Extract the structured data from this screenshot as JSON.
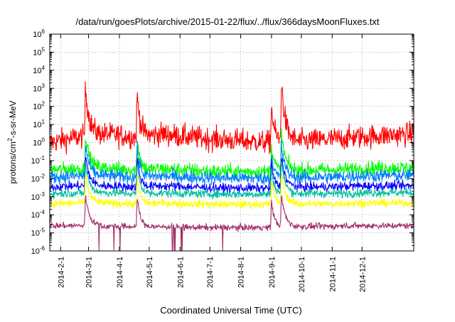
{
  "chart_data": {
    "type": "line",
    "title": "/data/run/goesPlots/archive/2015-01-22/flux/../flux/366daysMoonFluxes.txt",
    "xlabel": "Coordinated Universal Time (UTC)",
    "ylabel": {
      "prefix": "protons/cm",
      "sup": "2",
      "suffix": "-s-sr-MeV"
    },
    "yscale": "log",
    "ylim": [
      1e-06,
      1000000
    ],
    "yticks": [
      {
        "value": 1e-06,
        "base": "10",
        "exp": "-6"
      },
      {
        "value": 1e-05,
        "base": "10",
        "exp": "-5"
      },
      {
        "value": 0.0001,
        "base": "10",
        "exp": "-4"
      },
      {
        "value": 0.001,
        "base": "10",
        "exp": "-3"
      },
      {
        "value": 0.01,
        "base": "10",
        "exp": "-2"
      },
      {
        "value": 0.1,
        "base": "10",
        "exp": "-1"
      },
      {
        "value": 1,
        "base": "10",
        "exp": "0"
      },
      {
        "value": 10,
        "base": "10",
        "exp": "1"
      },
      {
        "value": 100,
        "base": "10",
        "exp": "2"
      },
      {
        "value": 1000,
        "base": "10",
        "exp": "3"
      },
      {
        "value": 10000,
        "base": "10",
        "exp": "4"
      },
      {
        "value": 100000,
        "base": "10",
        "exp": "5"
      },
      {
        "value": 1000000,
        "base": "10",
        "exp": "6"
      }
    ],
    "xlim": [
      "2014-01-21",
      "2015-01-22"
    ],
    "xticks": [
      "2014-2-1",
      "2014-3-1",
      "2014-4-1",
      "2014-5-1",
      "2014-6-1",
      "2014-7-1",
      "2014-8-1",
      "2014-9-1",
      "2014-10-1",
      "2014-11-1",
      "2014-12-1"
    ],
    "grid": true,
    "legend": "none",
    "events": [
      {
        "date": "2014-02-26",
        "peak": 1000,
        "width_days": 4
      },
      {
        "date": "2014-04-19",
        "peak": 500,
        "width_days": 3
      },
      {
        "date": "2014-09-01",
        "peak": 100,
        "width_days": 3
      },
      {
        "date": "2014-09-11",
        "peak": 2000,
        "width_days": 4
      }
    ],
    "series": [
      {
        "color": "#ff0000",
        "values": [
          1.0,
          2.0,
          3.0,
          2.0,
          3.0,
          2.0,
          1.5,
          1.2,
          1.0,
          1.2,
          1.5,
          2.0,
          2.5,
          3.0
        ]
      },
      {
        "color": "#00ff00",
        "values": [
          0.03,
          0.035,
          0.04,
          0.03,
          0.035,
          0.03,
          0.025,
          0.025,
          0.025,
          0.03,
          0.03,
          0.035,
          0.04,
          0.04
        ]
      },
      {
        "color": "#0080ff",
        "values": [
          0.012,
          0.014,
          0.015,
          0.012,
          0.014,
          0.012,
          0.011,
          0.011,
          0.01,
          0.012,
          0.012,
          0.014,
          0.015,
          0.015
        ]
      },
      {
        "color": "#0000ff",
        "values": [
          0.0035,
          0.004,
          0.004,
          0.0035,
          0.004,
          0.0035,
          0.003,
          0.003,
          0.003,
          0.0035,
          0.0035,
          0.004,
          0.004,
          0.004
        ]
      },
      {
        "color": "#00c0a0",
        "values": [
          0.0015,
          0.0016,
          0.0017,
          0.0015,
          0.0016,
          0.0015,
          0.0014,
          0.0014,
          0.0014,
          0.0015,
          0.0015,
          0.0016,
          0.0017,
          0.0017
        ]
      },
      {
        "color": "#ffff00",
        "values": [
          0.0004,
          0.00045,
          0.00045,
          0.0004,
          0.00045,
          0.0004,
          0.00038,
          0.00038,
          0.00038,
          0.0004,
          0.0004,
          0.00045,
          0.00045,
          0.00045
        ]
      },
      {
        "color": "#a0306a",
        "values": [
          2.5e-05,
          2.5e-05,
          2.3e-05,
          2.2e-05,
          2.2e-05,
          2e-05,
          2e-05,
          2e-05,
          2e-05,
          2.2e-05,
          2.3e-05,
          2.5e-05,
          2.5e-05,
          2.5e-05
        ]
      }
    ]
  }
}
